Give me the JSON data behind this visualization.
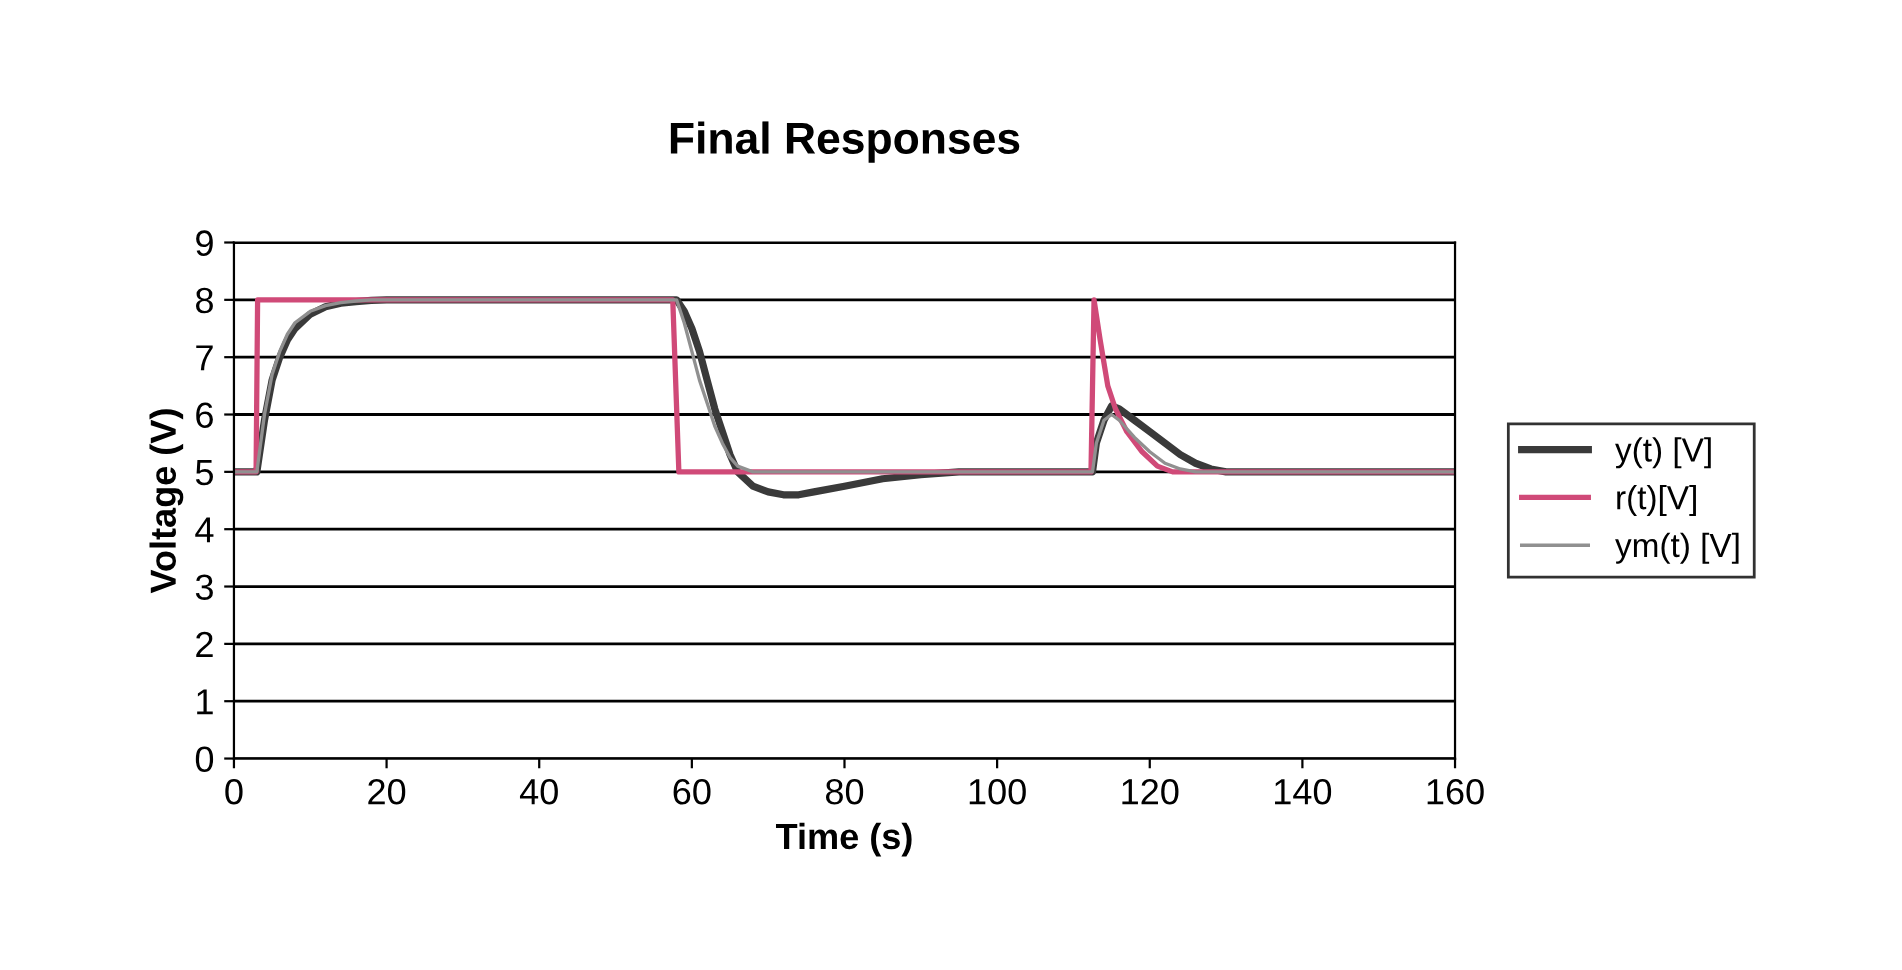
{
  "chart_data": {
    "type": "line",
    "title": "Final Responses",
    "xlabel": "Time (s)",
    "ylabel": "Voltage (V)",
    "xlim": [
      0,
      160
    ],
    "xticks": [
      0,
      20,
      40,
      60,
      80,
      100,
      120,
      140,
      160
    ],
    "ylim": [
      0,
      9
    ],
    "yticks": [
      0,
      1,
      2,
      3,
      4,
      5,
      6,
      7,
      8,
      9
    ],
    "grid": "y",
    "legend": "right",
    "line_style": "solid",
    "marker": "none",
    "series": [
      {
        "name": "y(t) [V]",
        "color": "#3a3a3a",
        "x": [
          0,
          3,
          4,
          5,
          6,
          7,
          8,
          10,
          12,
          14,
          16,
          18,
          20,
          30,
          40,
          50,
          58,
          59,
          60,
          61,
          62,
          63,
          64,
          65,
          66,
          68,
          70,
          72,
          74,
          76,
          80,
          85,
          90,
          95,
          100,
          110,
          112.5,
          113,
          114,
          115,
          116,
          118,
          120,
          122,
          124,
          126,
          128,
          130,
          135,
          140,
          150,
          160
        ],
        "values": [
          5,
          5,
          5.9,
          6.6,
          7.0,
          7.3,
          7.5,
          7.75,
          7.88,
          7.94,
          7.97,
          7.99,
          8,
          8,
          8,
          8,
          8,
          7.8,
          7.5,
          7.1,
          6.6,
          6.1,
          5.7,
          5.3,
          5.0,
          4.75,
          4.65,
          4.6,
          4.6,
          4.65,
          4.75,
          4.88,
          4.95,
          5,
          5,
          5,
          5,
          5.5,
          5.9,
          6.15,
          6.1,
          5.9,
          5.7,
          5.5,
          5.3,
          5.15,
          5.05,
          5,
          5,
          5,
          5,
          5
        ]
      },
      {
        "name": "r(t)[V]",
        "color": "#d04a78",
        "x": [
          0,
          2.9,
          3.1,
          57.5,
          58.3,
          112.3,
          112.7,
          113.5,
          114.5,
          115.5,
          117,
          119,
          121,
          123,
          160
        ],
        "values": [
          5,
          5,
          8,
          8,
          5,
          5,
          8,
          7.3,
          6.5,
          6.1,
          5.7,
          5.35,
          5.1,
          5,
          5
        ]
      },
      {
        "name": "ym(t) [V]",
        "color": "#909090",
        "x": [
          0,
          3,
          4,
          5,
          6,
          7,
          8,
          10,
          12,
          14,
          16,
          18,
          20,
          40,
          58,
          59,
          60,
          61,
          62,
          63,
          64,
          65,
          66,
          68,
          70,
          80,
          100,
          112.5,
          113,
          114,
          115,
          116,
          118,
          120,
          122,
          124,
          126,
          128,
          130,
          140,
          160
        ],
        "values": [
          5,
          5,
          6.0,
          6.7,
          7.1,
          7.4,
          7.6,
          7.8,
          7.9,
          7.95,
          7.98,
          8,
          8,
          8,
          8,
          7.6,
          7.1,
          6.6,
          6.2,
          5.8,
          5.5,
          5.25,
          5.1,
          5.0,
          5,
          5,
          5,
          5,
          5.5,
          5.9,
          6.0,
          5.9,
          5.6,
          5.35,
          5.15,
          5.05,
          5,
          5,
          5,
          5,
          5
        ]
      }
    ]
  }
}
